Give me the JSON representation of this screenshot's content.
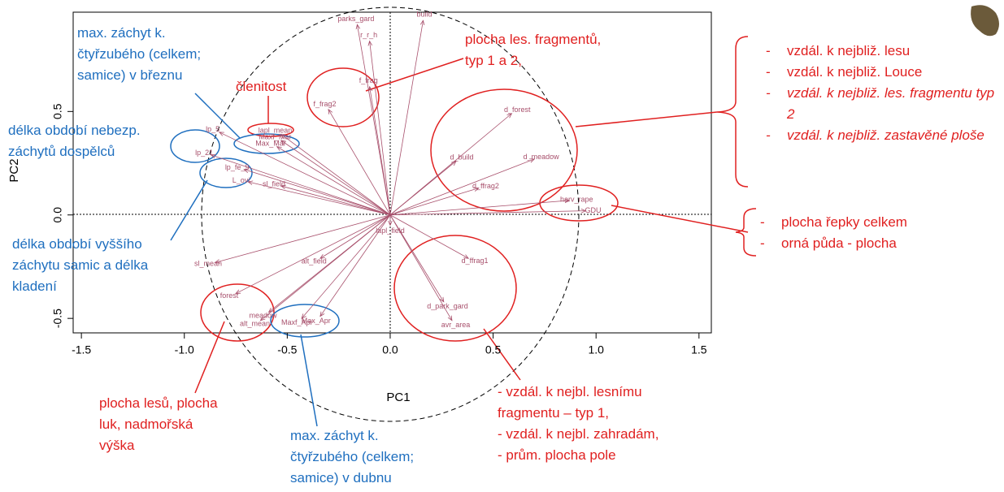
{
  "chart_data": {
    "type": "biplot",
    "x_label": "PC1",
    "y_label": "PC2",
    "labels": [
      "parks_gard",
      "r_r_h",
      "build",
      "f_frag",
      "f_frag2",
      "lapl_mean",
      "Maxf_Mar",
      "Max_Mar",
      "lp_5",
      "lp_21",
      "lp_fe_9",
      "L_ovi",
      "sl_field",
      "d_forest",
      "d_build",
      "d_meadow",
      "d_ffrag2",
      "harv_rape",
      "GDU",
      "lapl_field",
      "d_ffrag1",
      "d_park_gard",
      "avr_area",
      "alt_field",
      "sl_mean",
      "forest",
      "meadow",
      "alt_mean",
      "Maxf_Apr",
      "Max_Apr"
    ],
    "x": [
      -0.16,
      -0.1,
      0.16,
      -0.1,
      -0.3,
      -0.53,
      -0.53,
      -0.55,
      -0.83,
      -0.87,
      -0.71,
      -0.69,
      -0.53,
      0.59,
      0.32,
      0.7,
      0.43,
      0.87,
      0.95,
      0.0,
      0.38,
      0.26,
      0.3,
      -0.34,
      -0.85,
      -0.75,
      -0.59,
      -0.63,
      -0.43,
      -0.34
    ],
    "y": [
      0.92,
      0.84,
      0.94,
      0.62,
      0.51,
      0.39,
      0.36,
      0.33,
      0.4,
      0.29,
      0.22,
      0.16,
      0.14,
      0.49,
      0.26,
      0.27,
      0.13,
      0.07,
      0.02,
      -0.05,
      -0.21,
      -0.42,
      -0.51,
      -0.21,
      -0.23,
      -0.38,
      -0.47,
      -0.51,
      -0.5,
      -0.49
    ],
    "color": "#a8506c",
    "xlim": [
      -1.54,
      1.56
    ],
    "ylim": [
      -0.57,
      0.98
    ],
    "xticks": [
      -1.5,
      {
        "value": -1,
        "label": "-1.0"
      },
      -0.5,
      {
        "value": 0,
        "label": "0.0"
      },
      0.5,
      {
        "value": 1,
        "label": "1.0"
      },
      1.5
    ],
    "yticks": [
      -0.5,
      {
        "value": 0,
        "label": "0.0"
      },
      0.5
    ]
  },
  "annotations": {
    "march": "max. záchyt k. čtyřzubého (celkem; samice) v březnu",
    "fragments": "plocha les. fragmentů, typ 1 a 2,",
    "clenitost": "členitost",
    "adults": "délka období nebezp. záchytů dospělců",
    "females": "délka období vyššího záchytu samic a délka kladení",
    "forest_area": "plocha lesů, plocha luk, nadmořská výška",
    "april": "max. záchyt k. čtyřzubého (celkem; samice) v dubnu",
    "bottom_right": [
      "- vzdál. k nejbl. lesnímu fragmentu – typ 1,",
      "- vzdál. k nejbl. zahradám,",
      "- prům. plocha pole"
    ],
    "top_right": [
      "vzdál. k nejbliž. lesu",
      "vzdál. k nejbliž. Louce",
      "vzdál. k nejbliž. les. fragmentu typ 2",
      "vzdál. k nejbliž. zastavěné ploše"
    ],
    "top_right_bullet": "-",
    "mid_right": [
      "plocha řepky celkem",
      "orná půda - plocha"
    ]
  }
}
